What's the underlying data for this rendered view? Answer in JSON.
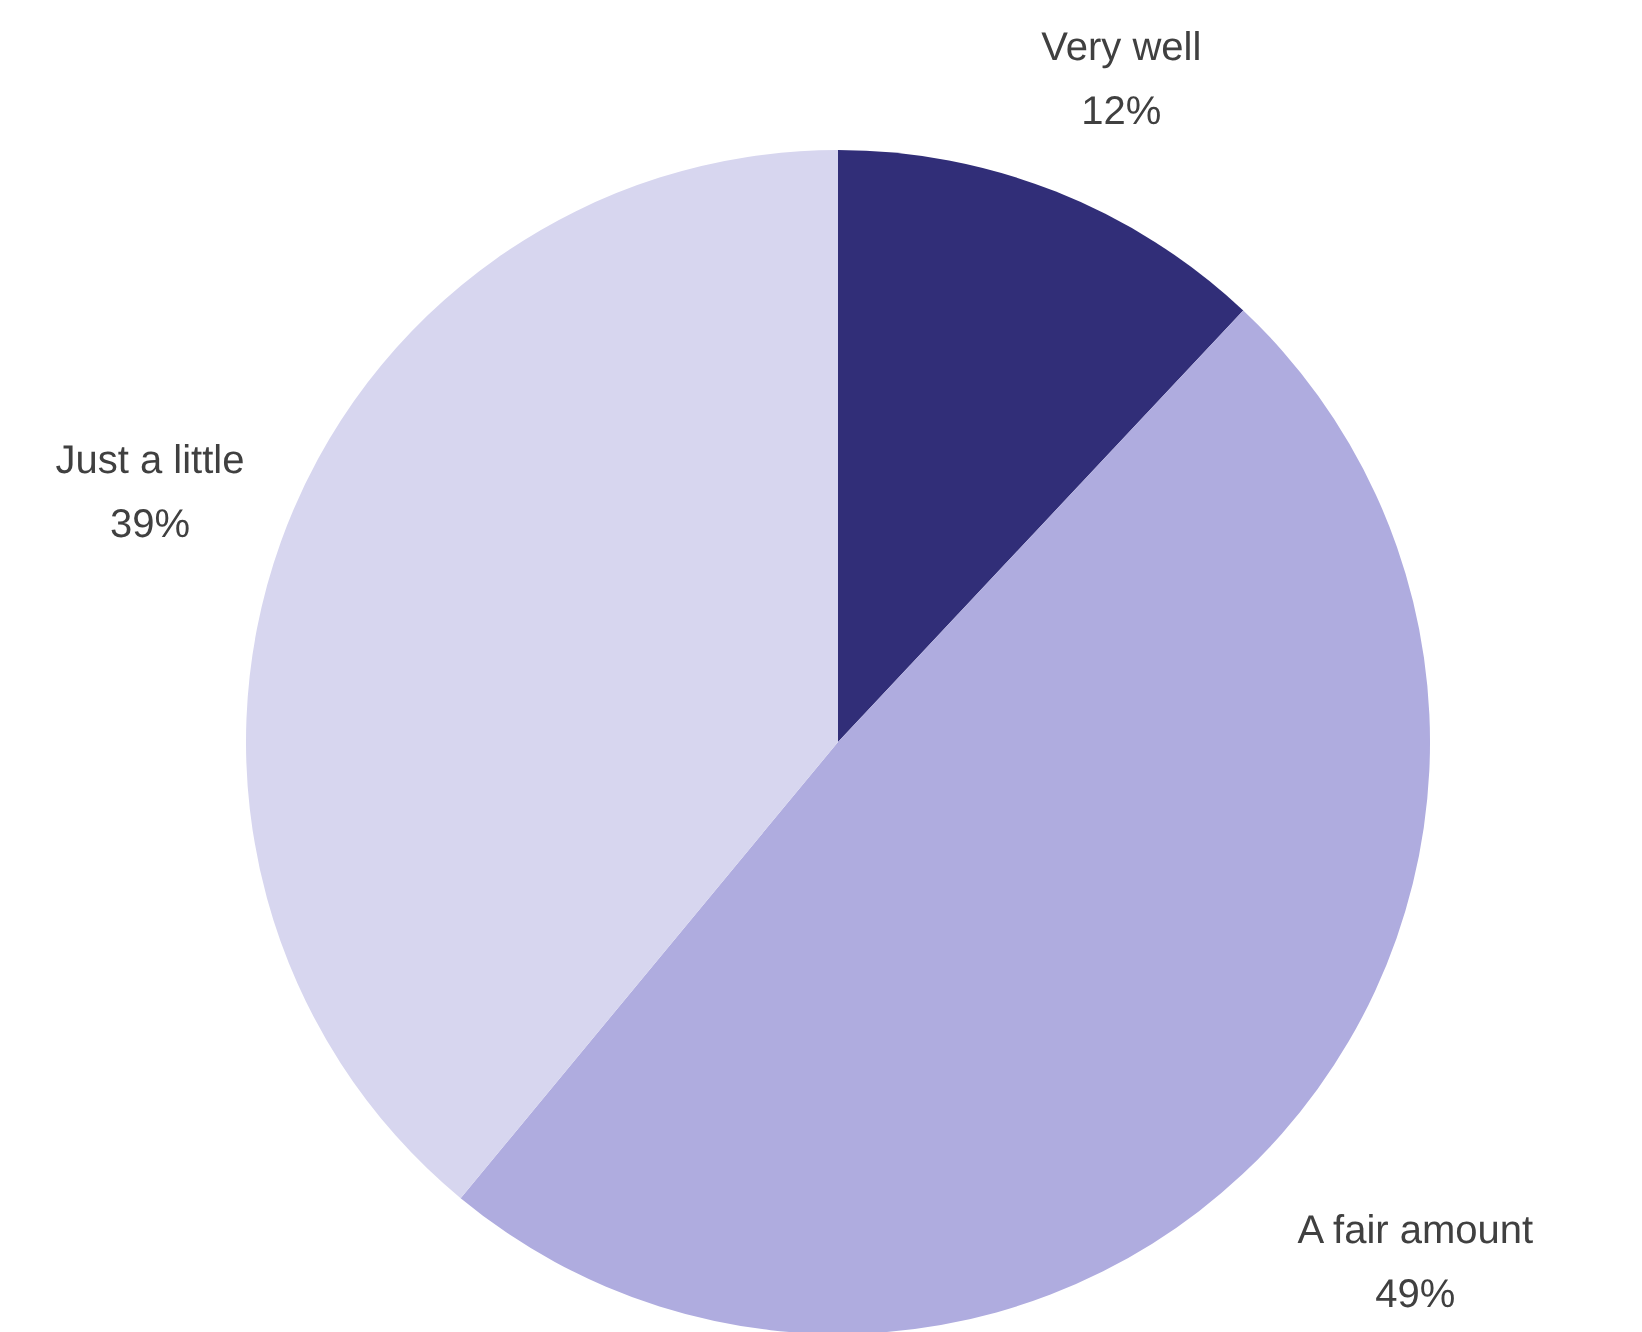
{
  "chart_data": {
    "type": "pie",
    "categories": [
      "Very well",
      "A fair amount",
      "Just a little"
    ],
    "values": [
      12,
      49,
      39
    ],
    "colors": [
      "#312e78",
      "#afacdf",
      "#d7d6ef"
    ],
    "value_labels": [
      "12%",
      "49%",
      "39%"
    ]
  }
}
